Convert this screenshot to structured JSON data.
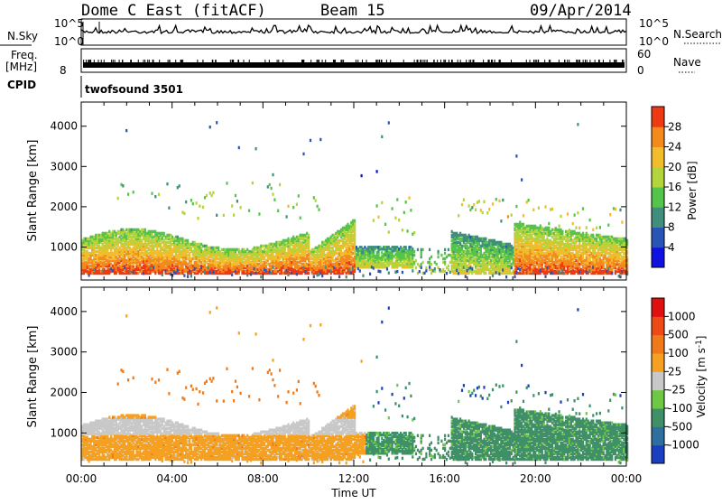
{
  "header": {
    "station": "Dome C East (fitACF)",
    "beam": "Beam 15",
    "date": "09/Apr/2014"
  },
  "summary_panels": {
    "nsky_label": "N.Sky",
    "nsky_ticks": [
      "10^5",
      "10^0"
    ],
    "nsearch_label": "N.Search",
    "nsearch_ticks": [
      "10^5",
      "10^0"
    ],
    "freq_label": "Freq.",
    "freq_unit": "[MHz]",
    "freq_ticks": [
      "8"
    ],
    "nave_label": "Nave",
    "nave_ticks": [
      "60",
      "0"
    ],
    "cpid_label": "CPID",
    "cpid_value": "twofsound 3501"
  },
  "chart_data": [
    {
      "type": "heatmap",
      "name": "power",
      "ylabel": "Slant Range [km]",
      "xlabel": "Time UT",
      "x_ticks": [
        "00:00",
        "04:00",
        "08:00",
        "12:00",
        "16:00",
        "20:00",
        "00:00"
      ],
      "xlim_hours": [
        0,
        24
      ],
      "ylim_km": [
        180,
        4600
      ],
      "y_ticks": [
        1000,
        2000,
        3000,
        4000
      ],
      "colorbar": {
        "label": "Power [dB]",
        "ticks": [
          "28",
          "24",
          "20",
          "16",
          "12",
          "8",
          "4"
        ],
        "colors": [
          "#1010e0",
          "#2855b5",
          "#3f8f7c",
          "#55c44a",
          "#b3d43a",
          "#f2bd2a",
          "#f28a1c",
          "#ee3a12"
        ]
      }
    },
    {
      "type": "heatmap",
      "name": "velocity",
      "ylabel": "Slant Range [km]",
      "xlabel": "Time UT",
      "x_ticks": [
        "00:00",
        "04:00",
        "08:00",
        "12:00",
        "16:00",
        "20:00",
        "00:00"
      ],
      "xlim_hours": [
        0,
        24
      ],
      "ylim_km": [
        180,
        4600
      ],
      "y_ticks": [
        1000,
        2000,
        3000,
        4000
      ],
      "colorbar": {
        "label": "Velocity [m s^-1]",
        "ticks": [
          "1000",
          "500",
          "100",
          "25",
          "-25",
          "-100",
          "-500",
          "-1000"
        ],
        "colors": [
          "#1a3fc0",
          "#2f6fa0",
          "#3f9068",
          "#6fc844",
          "#c8c8c8",
          "#f5a020",
          "#f07a1a",
          "#ee4a15",
          "#e01010"
        ]
      }
    }
  ]
}
